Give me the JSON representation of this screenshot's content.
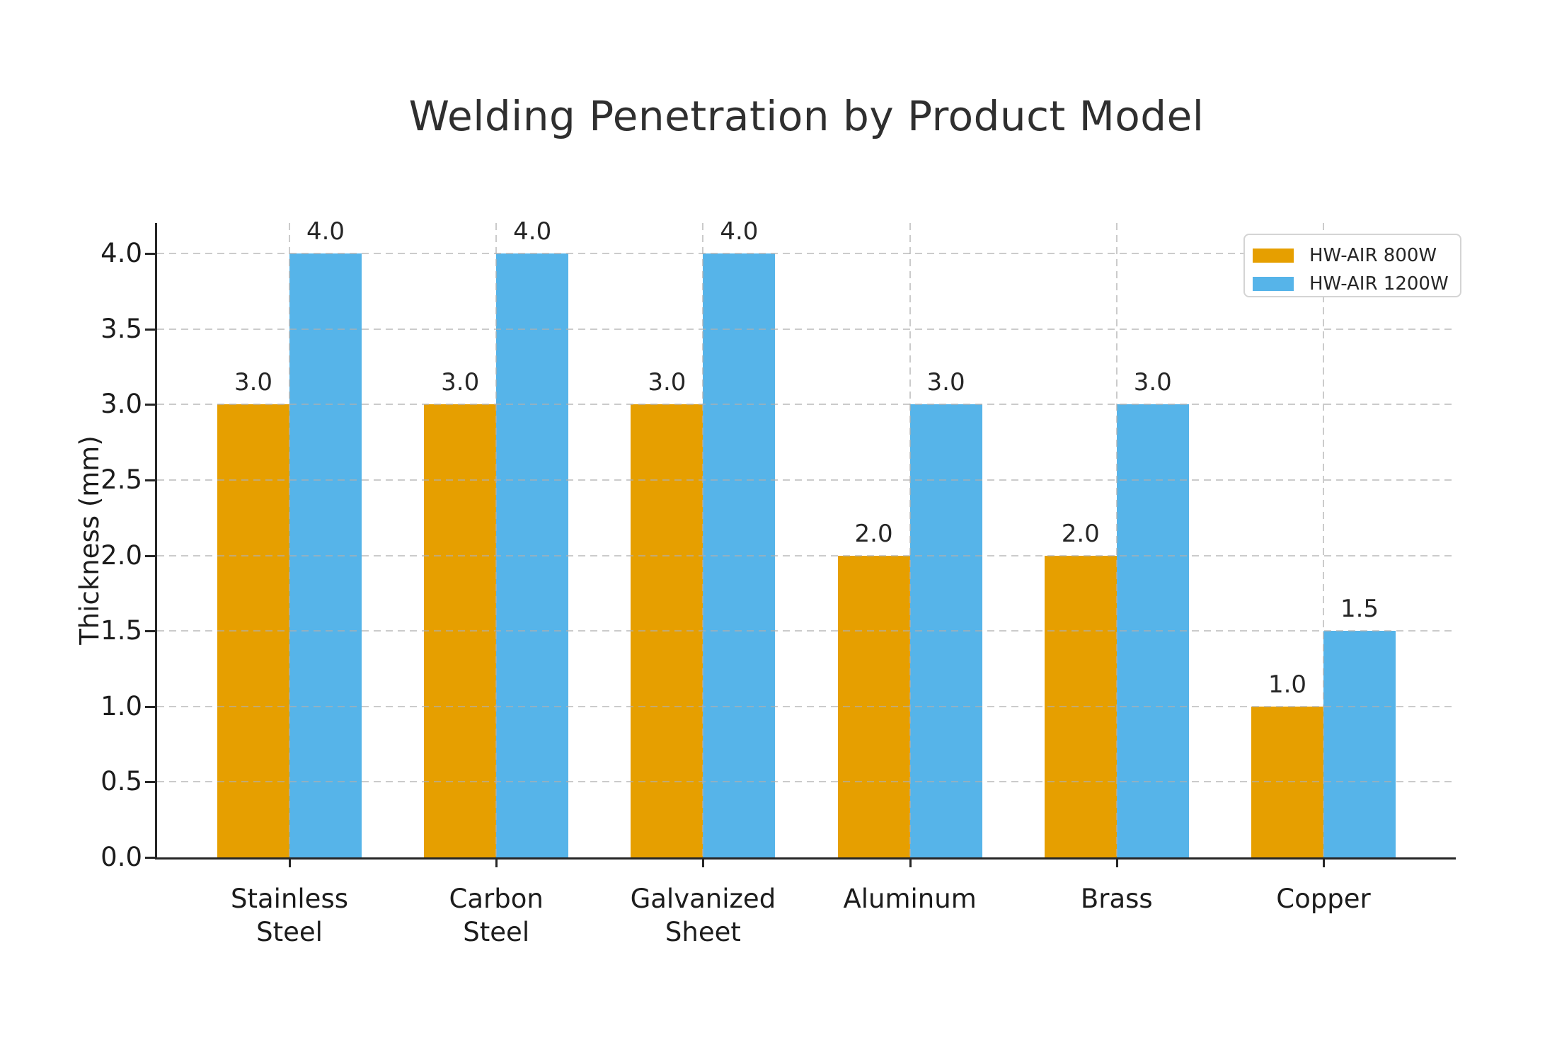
{
  "chart_data": {
    "type": "bar",
    "title": "Welding Penetration by Product Model",
    "categories": [
      "Stainless\nSteel",
      "Carbon\nSteel",
      "Galvanized\nSheet",
      "Aluminum",
      "Brass",
      "Copper"
    ],
    "series": [
      {
        "name": "HW-AIR 800W",
        "color": "#E69F00",
        "values": [
          3.0,
          3.0,
          3.0,
          2.0,
          2.0,
          1.0
        ]
      },
      {
        "name": "HW-AIR 1200W",
        "color": "#56B4E9",
        "values": [
          4.0,
          4.0,
          4.0,
          3.0,
          3.0,
          1.5
        ]
      }
    ],
    "xlabel": "",
    "ylabel": "Thickness (mm)",
    "ylim": [
      0,
      4.2
    ],
    "yticks": [
      0.0,
      0.5,
      1.0,
      1.5,
      2.0,
      2.5,
      3.0,
      3.5,
      4.0
    ],
    "grid": true,
    "grid_style": "dashed",
    "bar_value_labels": true,
    "value_label_format": "1dp",
    "legend_position": "upper right"
  },
  "style": {
    "axis_color": "#262626",
    "text_color": "#1c1c1c",
    "title_color": "#2f2f2f",
    "grid_color": "#afafaf",
    "legend_border_color": "#d4d4d4",
    "background": "#ffffff"
  }
}
